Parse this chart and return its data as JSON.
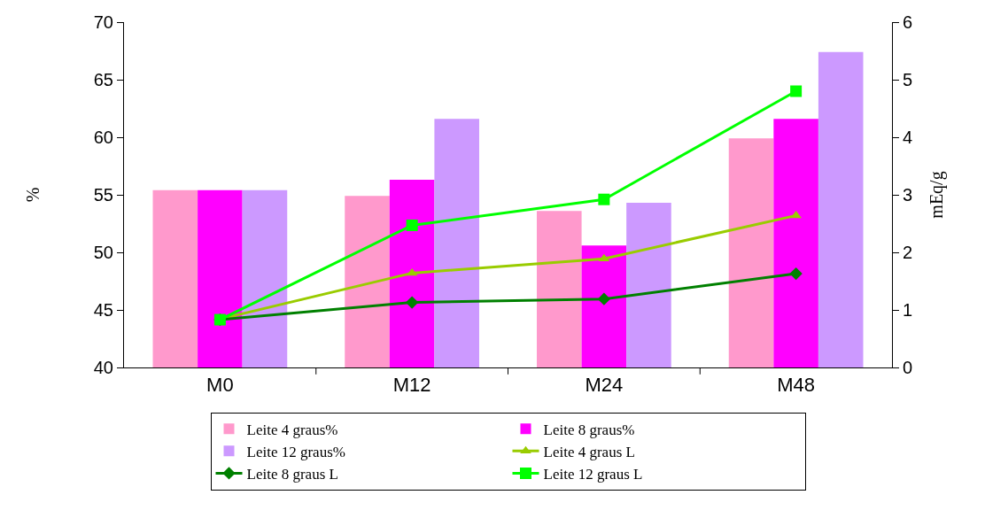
{
  "chart_data": {
    "type": "bar",
    "categories": [
      "M0",
      "M12",
      "M24",
      "M48"
    ],
    "ylabel": "%",
    "y2label": "mEq/g",
    "ylim": [
      40,
      70
    ],
    "yticks": [
      40,
      45,
      50,
      55,
      60,
      65,
      70
    ],
    "y2lim": [
      0,
      6
    ],
    "y2ticks": [
      0,
      1,
      2,
      3,
      4,
      5,
      6
    ],
    "grid": false,
    "legend": "bottom",
    "series": [
      {
        "name": "Leite 4 graus%",
        "color": "#ff99cc",
        "values": [
          55.4,
          54.9,
          53.6,
          59.9
        ]
      },
      {
        "name": "Leite 8 graus%",
        "color": "#ff00ff",
        "values": [
          55.4,
          56.3,
          50.6,
          61.6
        ]
      },
      {
        "name": "Leite 12 graus%",
        "color": "#cc99ff",
        "values": [
          55.4,
          61.6,
          54.3,
          67.4
        ]
      },
      {
        "name": "Leite 4 graus L",
        "type": "line",
        "axis": "y2",
        "marker": "triangle",
        "color": "#99cc00",
        "values": [
          0.84,
          1.64,
          1.89,
          2.64
        ]
      },
      {
        "name": "Leite 8 graus L",
        "type": "line",
        "axis": "y2",
        "marker": "diamond",
        "color": "#008000",
        "values": [
          0.83,
          1.13,
          1.19,
          1.63
        ]
      },
      {
        "name": "Leite 12 graus L",
        "type": "line",
        "axis": "y2",
        "marker": "square",
        "color": "#00ff00",
        "values": [
          0.83,
          2.47,
          2.92,
          4.8
        ]
      }
    ]
  }
}
